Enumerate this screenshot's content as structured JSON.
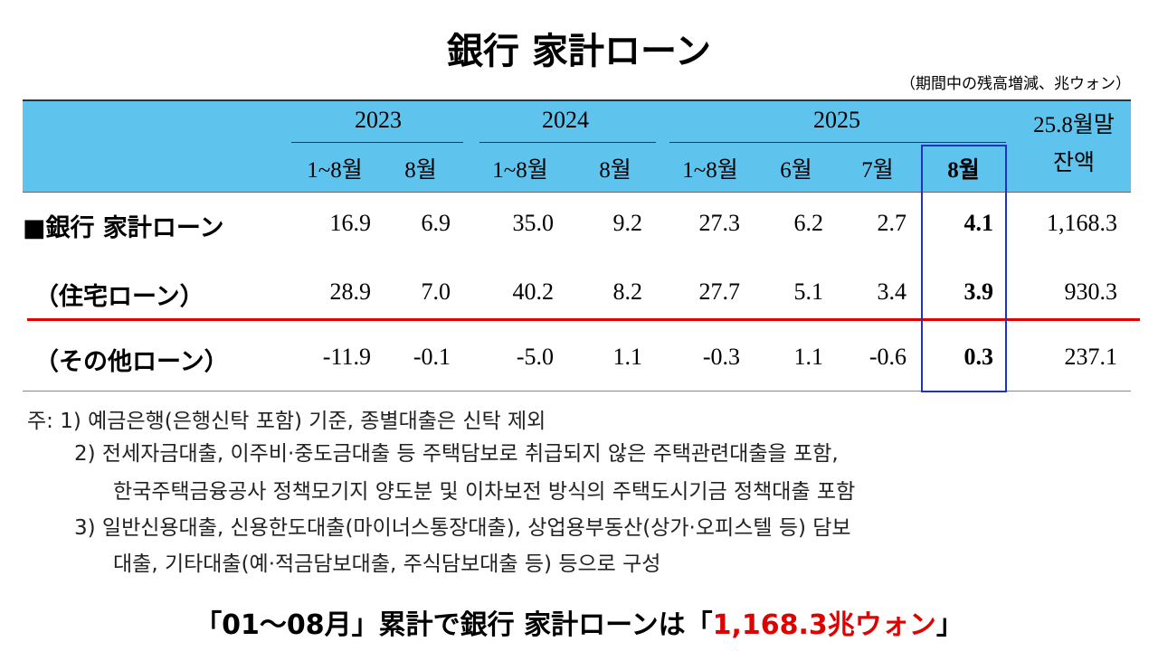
{
  "title": "銀行 家計ローン",
  "unit": "（期間中の残高増減、兆ウォン）",
  "table": {
    "years": [
      "2023",
      "2024",
      "2025"
    ],
    "balance_header": [
      "25.8월말",
      "잔액"
    ],
    "subheaders": [
      "1~8월",
      "8월",
      "1~8월",
      "8월",
      "1~8월",
      "6월",
      "7월",
      "8월"
    ],
    "rows": [
      {
        "label": "■銀行 家計ローン",
        "values": [
          "16.9",
          "6.9",
          "35.0",
          "9.2",
          "27.3",
          "6.2",
          "2.7",
          "4.1",
          "1,168.3"
        ]
      },
      {
        "label": "（住宅ローン）",
        "values": [
          "28.9",
          "7.0",
          "40.2",
          "8.2",
          "27.7",
          "5.1",
          "3.4",
          "3.9",
          "930.3"
        ]
      },
      {
        "label": "（その他ローン）",
        "values": [
          "-11.9",
          "-0.1",
          "-5.0",
          "1.1",
          "-0.3",
          "1.1",
          "-0.6",
          "0.3",
          "237.1"
        ]
      }
    ]
  },
  "notes": [
    "주: 1)  예금은행(은행신탁 포함) 기준, 종별대출은 신탁 제외",
    "2) 전세자금대출, 이주비·중도금대출 등 주택담보로 취급되지 않은 주택관련대출을 포함,",
    "한국주택금융공사 정책모기지 양도분 및 이차보전 방식의 주택도시기금 정책대출 포함",
    "3) 일반신용대출, 신용한도대출(마이너스통장대출), 상업용부동산(상가·오피스텔 등) 담보",
    "대출, 기타대출(예·적금담보대출, 주식담보대출 등) 등으로 구성"
  ],
  "footer": {
    "before": "「01～08月」累計で銀行 家計ローンは「",
    "highlight": "1,168.3兆ウォン",
    "after": "」"
  }
}
